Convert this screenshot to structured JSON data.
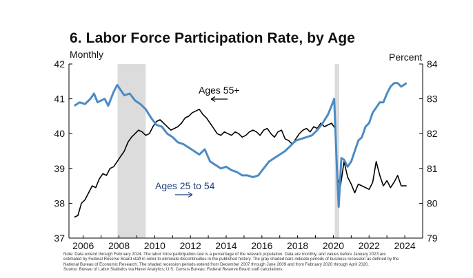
{
  "title": "6. Labor Force Participation Rate, by Age",
  "left_unit": "Monthly",
  "right_unit": "Percent",
  "notes": [
    "Note: Data extend through February 2024. The labor force participation rate is a percentage of the relevant population. Data are monthly, and values before January 2023 are",
    "estimated by Federal Reserve Board staff in order to eliminate discontinuities in the published history. The gray shaded bars indicate periods of business recession as defined by the",
    "National Bureau of Economic Research. The shaded recession periods extend from December 2007 through June 2009 and from February 2020 through April 2020.",
    "Source: Bureau of Labor Statistics via Haver Analytics; U.S. Census Bureau; Federal Reserve Board staff calculations."
  ],
  "colors": {
    "ages_25_54": "#4a8bc4",
    "ages_55_plus": "#000000",
    "recession": "#dcdcdc",
    "label_25_54": "#1f3f7a"
  },
  "chart_data": {
    "type": "line",
    "xlim": [
      2005.2,
      2025.0
    ],
    "x_ticks": [
      "2006",
      "2008",
      "2010",
      "2012",
      "2014",
      "2016",
      "2018",
      "2020",
      "2022",
      "2024"
    ],
    "left_axis": {
      "ylim": [
        37,
        42
      ],
      "ticks": [
        "37",
        "38",
        "39",
        "40",
        "41",
        "42"
      ]
    },
    "right_axis": {
      "ylim": [
        79,
        84
      ],
      "ticks": [
        "79",
        "80",
        "81",
        "82",
        "83",
        "84"
      ]
    },
    "recessions": [
      {
        "start": 2007.92,
        "end": 2009.5
      },
      {
        "start": 2020.08,
        "end": 2020.33
      }
    ],
    "series": [
      {
        "name": "Ages 55+",
        "axis": "left",
        "x": [
          2005.5,
          2005.7,
          2005.9,
          2006.1,
          2006.3,
          2006.5,
          2006.7,
          2006.9,
          2007.1,
          2007.3,
          2007.5,
          2007.7,
          2007.9,
          2008.1,
          2008.3,
          2008.5,
          2008.7,
          2008.9,
          2009.1,
          2009.3,
          2009.5,
          2009.7,
          2009.9,
          2010.1,
          2010.3,
          2010.5,
          2010.7,
          2010.9,
          2011.1,
          2011.3,
          2011.5,
          2011.7,
          2011.9,
          2012.1,
          2012.3,
          2012.5,
          2012.7,
          2012.9,
          2013.1,
          2013.3,
          2013.5,
          2013.7,
          2013.9,
          2014.1,
          2014.3,
          2014.5,
          2014.7,
          2014.9,
          2015.1,
          2015.3,
          2015.5,
          2015.7,
          2015.9,
          2016.1,
          2016.3,
          2016.5,
          2016.7,
          2016.9,
          2017.1,
          2017.3,
          2017.5,
          2017.7,
          2017.9,
          2018.1,
          2018.3,
          2018.5,
          2018.7,
          2018.9,
          2019.1,
          2019.3,
          2019.5,
          2019.7,
          2019.9,
          2020.1,
          2020.25,
          2020.4,
          2020.6,
          2020.8,
          2021.0,
          2021.2,
          2021.4,
          2021.6,
          2021.8,
          2022.0,
          2022.2,
          2022.4,
          2022.6,
          2022.8,
          2023.0,
          2023.2,
          2023.4,
          2023.6,
          2023.8,
          2024.1
        ],
        "values": [
          37.6,
          37.65,
          38.0,
          38.1,
          38.3,
          38.5,
          38.45,
          38.7,
          38.85,
          38.8,
          39.0,
          39.05,
          39.2,
          39.35,
          39.5,
          39.75,
          39.9,
          40.0,
          40.1,
          40.05,
          39.95,
          40.0,
          40.2,
          40.35,
          40.4,
          40.3,
          40.2,
          40.1,
          40.15,
          40.2,
          40.3,
          40.45,
          40.5,
          40.6,
          40.65,
          40.7,
          40.55,
          40.45,
          40.3,
          40.15,
          40.0,
          39.95,
          40.05,
          40.0,
          39.95,
          40.05,
          40.0,
          39.9,
          39.95,
          40.05,
          40.1,
          40.05,
          39.95,
          40.1,
          40.15,
          40.0,
          39.9,
          40.05,
          40.1,
          39.85,
          39.8,
          39.7,
          39.85,
          40.0,
          40.1,
          40.15,
          40.05,
          40.2,
          40.15,
          40.3,
          40.2,
          40.25,
          40.3,
          40.15,
          38.7,
          38.5,
          39.2,
          38.75,
          38.55,
          38.3,
          38.55,
          38.5,
          38.45,
          38.4,
          38.6,
          39.2,
          38.8,
          38.5,
          38.65,
          38.45,
          38.6,
          38.8,
          38.5,
          38.5
        ]
      },
      {
        "name": "Ages 25 to 54",
        "axis": "right",
        "x": [
          2005.5,
          2005.8,
          2006.1,
          2006.4,
          2006.6,
          2006.8,
          2007.0,
          2007.2,
          2007.4,
          2007.7,
          2007.9,
          2008.1,
          2008.3,
          2008.6,
          2008.9,
          2009.2,
          2009.5,
          2009.8,
          2010.1,
          2010.4,
          2010.7,
          2011.0,
          2011.3,
          2011.6,
          2011.9,
          2012.2,
          2012.5,
          2012.8,
          2013.1,
          2013.4,
          2013.7,
          2014.0,
          2014.3,
          2014.6,
          2014.9,
          2015.2,
          2015.5,
          2015.8,
          2016.1,
          2016.4,
          2016.7,
          2017.0,
          2017.3,
          2017.6,
          2017.9,
          2018.2,
          2018.5,
          2018.8,
          2019.1,
          2019.4,
          2019.7,
          2019.9,
          2020.05,
          2020.2,
          2020.3,
          2020.45,
          2020.6,
          2020.8,
          2021.0,
          2021.2,
          2021.4,
          2021.6,
          2021.8,
          2022.0,
          2022.2,
          2022.4,
          2022.6,
          2022.8,
          2023.0,
          2023.2,
          2023.4,
          2023.6,
          2023.8,
          2024.1
        ],
        "values": [
          82.8,
          82.9,
          82.85,
          83.0,
          83.15,
          82.9,
          82.95,
          83.0,
          82.8,
          83.2,
          83.4,
          83.25,
          83.1,
          83.15,
          82.95,
          82.85,
          82.7,
          82.45,
          82.25,
          82.2,
          82.0,
          81.9,
          81.75,
          81.7,
          81.6,
          81.5,
          81.4,
          81.55,
          81.2,
          81.1,
          81.0,
          81.05,
          80.95,
          80.9,
          80.8,
          80.8,
          80.75,
          80.8,
          81.0,
          81.2,
          81.3,
          81.4,
          81.5,
          81.65,
          81.8,
          81.85,
          81.9,
          81.95,
          82.1,
          82.3,
          82.55,
          82.8,
          83.0,
          81.0,
          79.9,
          81.3,
          81.25,
          81.05,
          81.2,
          81.5,
          81.8,
          81.9,
          82.2,
          82.3,
          82.6,
          82.75,
          82.9,
          82.9,
          83.15,
          83.35,
          83.45,
          83.45,
          83.35,
          83.45
        ]
      }
    ],
    "annotations": [
      {
        "text": "Ages 55+",
        "series": "Ages 55+"
      },
      {
        "text": "Ages 25 to 54",
        "series": "Ages 25 to 54"
      }
    ]
  }
}
